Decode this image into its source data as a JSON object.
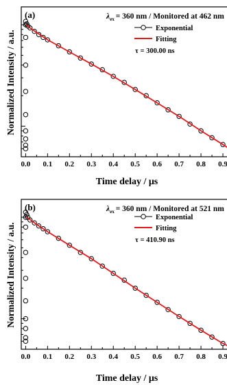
{
  "chart_data": [
    {
      "type": "scatter",
      "panel_label": "(a)",
      "header": "= 360 nm / Monitored at 462 nm",
      "header_symbol": "λ",
      "header_subscript": "ex",
      "legend": {
        "placement": "top-right",
        "entries": [
          "Exponential",
          "Fitting"
        ]
      },
      "tau_label": "τ = 300.00 ns",
      "xlabel": "Time delay / μs",
      "ylabel": "Normalized Intensity / a.u.",
      "xticks": [
        "0.0",
        "0.1",
        "0.2",
        "0.3",
        "0.4",
        "0.5",
        "0.6",
        "0.7",
        "0.8",
        "0.9"
      ],
      "xlim": [
        -0.02,
        0.95
      ],
      "ylog": true,
      "ylim": [
        0.05,
        1.5
      ],
      "grid": false,
      "tau_ns": 300.0,
      "series": [
        {
          "name": "Exponential",
          "marker": "open-circle",
          "color": "#000000",
          "x": [
            0.0,
            0.0,
            0.0,
            0.0,
            0.0,
            0.0,
            0.0,
            0.0,
            0.0,
            0.0,
            0.005,
            0.01,
            0.02,
            0.04,
            0.06,
            0.08,
            0.1,
            0.15,
            0.2,
            0.25,
            0.3,
            0.35,
            0.4,
            0.45,
            0.5,
            0.55,
            0.6,
            0.65,
            0.7,
            0.75,
            0.8,
            0.85,
            0.9,
            0.93
          ],
          "y": [
            0.06,
            0.065,
            0.075,
            0.09,
            0.13,
            0.22,
            0.4,
            0.75,
            1.0,
            1.08,
            1.02,
            0.97,
            0.93,
            0.86,
            0.8,
            0.75,
            0.71,
            0.62,
            0.54,
            0.47,
            0.41,
            0.36,
            0.31,
            0.27,
            0.23,
            0.2,
            0.17,
            0.145,
            0.125,
            0.105,
            0.09,
            0.077,
            0.066,
            0.06
          ]
        },
        {
          "name": "Fitting",
          "marker": "line",
          "color": "#e31a1c",
          "x": [
            0.005,
            0.02,
            0.05,
            0.1,
            0.2,
            0.3,
            0.4,
            0.5,
            0.6,
            0.7,
            0.8,
            0.9,
            0.93
          ],
          "y": [
            1.0,
            0.93,
            0.84,
            0.71,
            0.54,
            0.41,
            0.31,
            0.23,
            0.17,
            0.125,
            0.09,
            0.066,
            0.06
          ]
        }
      ]
    },
    {
      "type": "scatter",
      "panel_label": "(b)",
      "header": "= 360 nm / Monitored at 521 nm",
      "header_symbol": "λ",
      "header_subscript": "ex",
      "legend": {
        "placement": "top-right",
        "entries": [
          "Exponential",
          "Fitting"
        ]
      },
      "tau_label": "τ = 410.90 ns",
      "xlabel": "Time delay / μs",
      "ylabel": "Normalized Intensity / a.u.",
      "xticks": [
        "0.0",
        "0.1",
        "0.2",
        "0.3",
        "0.4",
        "0.5",
        "0.6",
        "0.7",
        "0.8",
        "0.9"
      ],
      "xlim": [
        -0.02,
        0.95
      ],
      "ylog": true,
      "ylim": [
        0.05,
        1.5
      ],
      "grid": false,
      "tau_ns": 410.9,
      "series": [
        {
          "name": "Exponential",
          "marker": "open-circle",
          "color": "#000000",
          "x": [
            0.0,
            0.0,
            0.0,
            0.0,
            0.0,
            0.0,
            0.0,
            0.0,
            0.0,
            0.0,
            0.005,
            0.01,
            0.02,
            0.04,
            0.06,
            0.08,
            0.1,
            0.15,
            0.2,
            0.25,
            0.3,
            0.35,
            0.4,
            0.45,
            0.5,
            0.55,
            0.6,
            0.65,
            0.7,
            0.75,
            0.8,
            0.85,
            0.9,
            0.93
          ],
          "y": [
            0.06,
            0.065,
            0.08,
            0.1,
            0.15,
            0.25,
            0.45,
            0.8,
            1.0,
            1.12,
            1.06,
            1.0,
            0.94,
            0.88,
            0.82,
            0.77,
            0.72,
            0.62,
            0.53,
            0.45,
            0.39,
            0.33,
            0.28,
            0.24,
            0.2,
            0.17,
            0.145,
            0.123,
            0.105,
            0.09,
            0.077,
            0.066,
            0.057,
            0.053
          ]
        },
        {
          "name": "Fitting",
          "marker": "line",
          "color": "#e31a1c",
          "x": [
            0.005,
            0.02,
            0.05,
            0.1,
            0.2,
            0.3,
            0.4,
            0.5,
            0.6,
            0.7,
            0.8,
            0.9,
            0.93
          ],
          "y": [
            1.0,
            0.95,
            0.85,
            0.72,
            0.53,
            0.39,
            0.28,
            0.2,
            0.145,
            0.105,
            0.077,
            0.057,
            0.053
          ]
        }
      ]
    }
  ]
}
